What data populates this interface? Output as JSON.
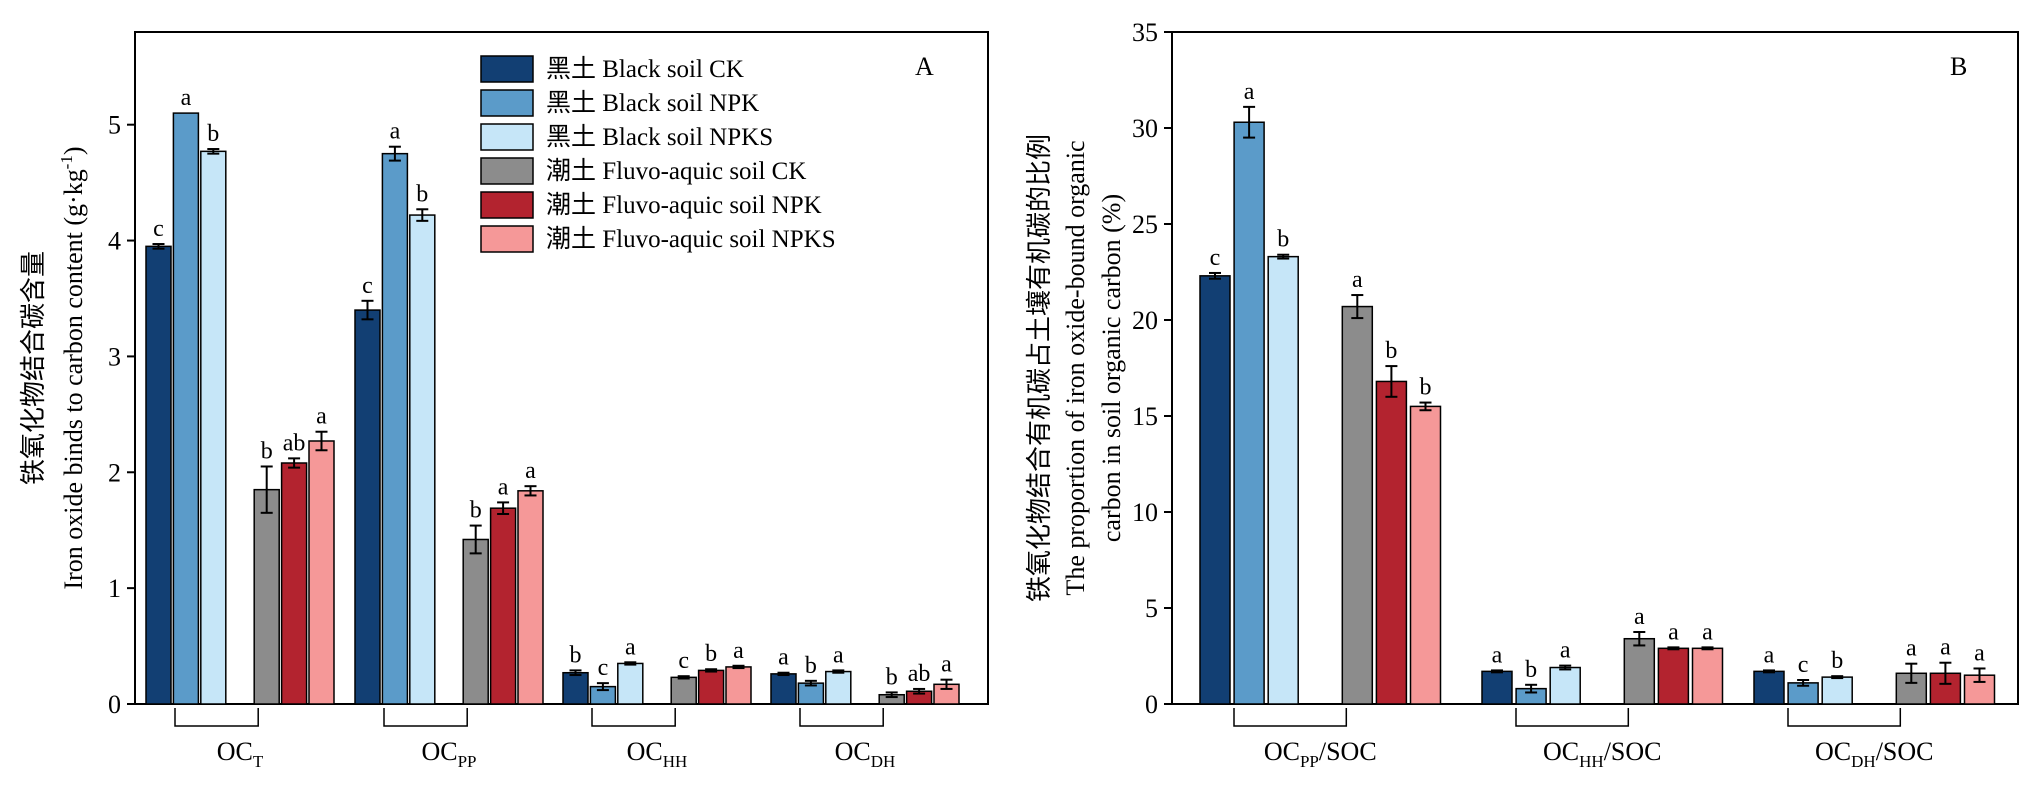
{
  "panels": [
    {
      "panel_label": "A",
      "ylabel_cn": "铁氧化物结合碳含量",
      "ylabel_en_main": "Iron oxide binds to carbon content (g·kg",
      "ylabel_en_sup": "-1",
      "ylabel_en_close": ")"
    },
    {
      "panel_label": "B",
      "ylabel_lines": [
        "铁氧化物结合有机碳占土壤有机碳的比例",
        "The proportion of iron oxide-bound organic",
        "carbon in soil organic carbon (%)"
      ]
    }
  ],
  "legend": [
    {
      "label": "黑土 Black soil CK"
    },
    {
      "label": "黑土 Black soil NPK"
    },
    {
      "label": "黑土 Black soil NPKS"
    },
    {
      "label": "潮土 Fluvo-aquic soil CK"
    },
    {
      "label": "潮土 Fluvo-aquic soil NPK"
    },
    {
      "label": "潮土 Fluvo-aquic soil NPKS"
    }
  ],
  "colors": [
    "#123f73",
    "#5b9bc9",
    "#c6e6f8",
    "#8c8c8c",
    "#b3232f",
    "#f59898"
  ],
  "chart_data": [
    {
      "type": "bar",
      "panel": "A",
      "ylabel": "铁氧化物结合碳含量 Iron oxide binds to carbon content (g·kg-1)",
      "ylim": [
        0,
        5.8
      ],
      "yticks": [
        "0",
        "1",
        "2",
        "3",
        "4",
        "5"
      ],
      "grid": false,
      "legend_position": "top-right",
      "groups": [
        {
          "base": "OC",
          "sub": "T"
        },
        {
          "base": "OC",
          "sub": "PP"
        },
        {
          "base": "OC",
          "sub": "HH"
        },
        {
          "base": "OC",
          "sub": "DH"
        }
      ],
      "series": [
        {
          "name": "黑土 Black soil CK",
          "values": [
            3.95,
            3.4,
            0.27,
            0.26
          ],
          "errors": [
            0.02,
            0.08,
            0.02,
            0.01
          ],
          "letters": [
            "c",
            "c",
            "b",
            "a"
          ]
        },
        {
          "name": "黑土 Black soil NPK",
          "values": [
            5.1,
            4.75,
            0.15,
            0.18
          ],
          "errors": [
            0.0,
            0.06,
            0.03,
            0.02
          ],
          "letters": [
            "a",
            "a",
            "c",
            "b"
          ]
        },
        {
          "name": "黑土 Black soil NPKS",
          "values": [
            4.77,
            4.22,
            0.35,
            0.28
          ],
          "errors": [
            0.02,
            0.05,
            0.01,
            0.01
          ],
          "letters": [
            "b",
            "b",
            "a",
            "a"
          ]
        },
        {
          "name": "潮土 Fluvo-aquic soil CK",
          "values": [
            1.85,
            1.42,
            0.23,
            0.08
          ],
          "errors": [
            0.2,
            0.12,
            0.01,
            0.02
          ],
          "letters": [
            "b",
            "b",
            "c",
            "b"
          ]
        },
        {
          "name": "潮土 Fluvo-aquic soil NPK",
          "values": [
            2.08,
            1.69,
            0.29,
            0.11
          ],
          "errors": [
            0.04,
            0.05,
            0.01,
            0.02
          ],
          "letters": [
            "ab",
            "a",
            "b",
            "ab"
          ]
        },
        {
          "name": "潮土 Fluvo-aquic soil NPKS",
          "values": [
            2.27,
            1.84,
            0.32,
            0.17
          ],
          "errors": [
            0.08,
            0.04,
            0.01,
            0.04
          ],
          "letters": [
            "a",
            "a",
            "a",
            "a"
          ]
        }
      ]
    },
    {
      "type": "bar",
      "panel": "B",
      "ylabel": "铁氧化物结合有机碳占土壤有机碳的比例 The proportion of iron oxide-bound organic carbon in soil organic carbon (%)",
      "ylim": [
        0,
        35
      ],
      "yticks": [
        "0",
        "5",
        "10",
        "15",
        "20",
        "25",
        "30",
        "35"
      ],
      "grid": false,
      "groups": [
        {
          "base": "OC",
          "sub": "PP",
          "suffix": "/SOC"
        },
        {
          "base": "OC",
          "sub": "HH",
          "suffix": "/SOC"
        },
        {
          "base": "OC",
          "sub": "DH",
          "suffix": "/SOC"
        }
      ],
      "series": [
        {
          "name": "黑土 Black soil CK",
          "values": [
            22.3,
            1.7,
            1.7
          ],
          "errors": [
            0.15,
            0.05,
            0.05
          ],
          "letters": [
            "c",
            "a",
            "a"
          ]
        },
        {
          "name": "黑土 Black soil NPK",
          "values": [
            30.3,
            0.8,
            1.1
          ],
          "errors": [
            0.8,
            0.2,
            0.15
          ],
          "letters": [
            "a",
            "b",
            "c"
          ]
        },
        {
          "name": "黑土 Black soil NPKS",
          "values": [
            23.3,
            1.9,
            1.4
          ],
          "errors": [
            0.1,
            0.1,
            0.05
          ],
          "letters": [
            "b",
            "a",
            "b"
          ]
        },
        {
          "name": "潮土 Fluvo-aquic soil CK",
          "values": [
            20.7,
            3.4,
            1.6
          ],
          "errors": [
            0.6,
            0.35,
            0.5
          ],
          "letters": [
            "a",
            "a",
            "a"
          ]
        },
        {
          "name": "潮土 Fluvo-aquic soil NPK",
          "values": [
            16.8,
            2.9,
            1.6
          ],
          "errors": [
            0.8,
            0.05,
            0.55
          ],
          "letters": [
            "b",
            "a",
            "a"
          ]
        },
        {
          "name": "潮土 Fluvo-aquic soil NPKS",
          "values": [
            15.5,
            2.9,
            1.5
          ],
          "errors": [
            0.2,
            0.05,
            0.35
          ],
          "letters": [
            "b",
            "a",
            "a"
          ]
        }
      ]
    }
  ]
}
